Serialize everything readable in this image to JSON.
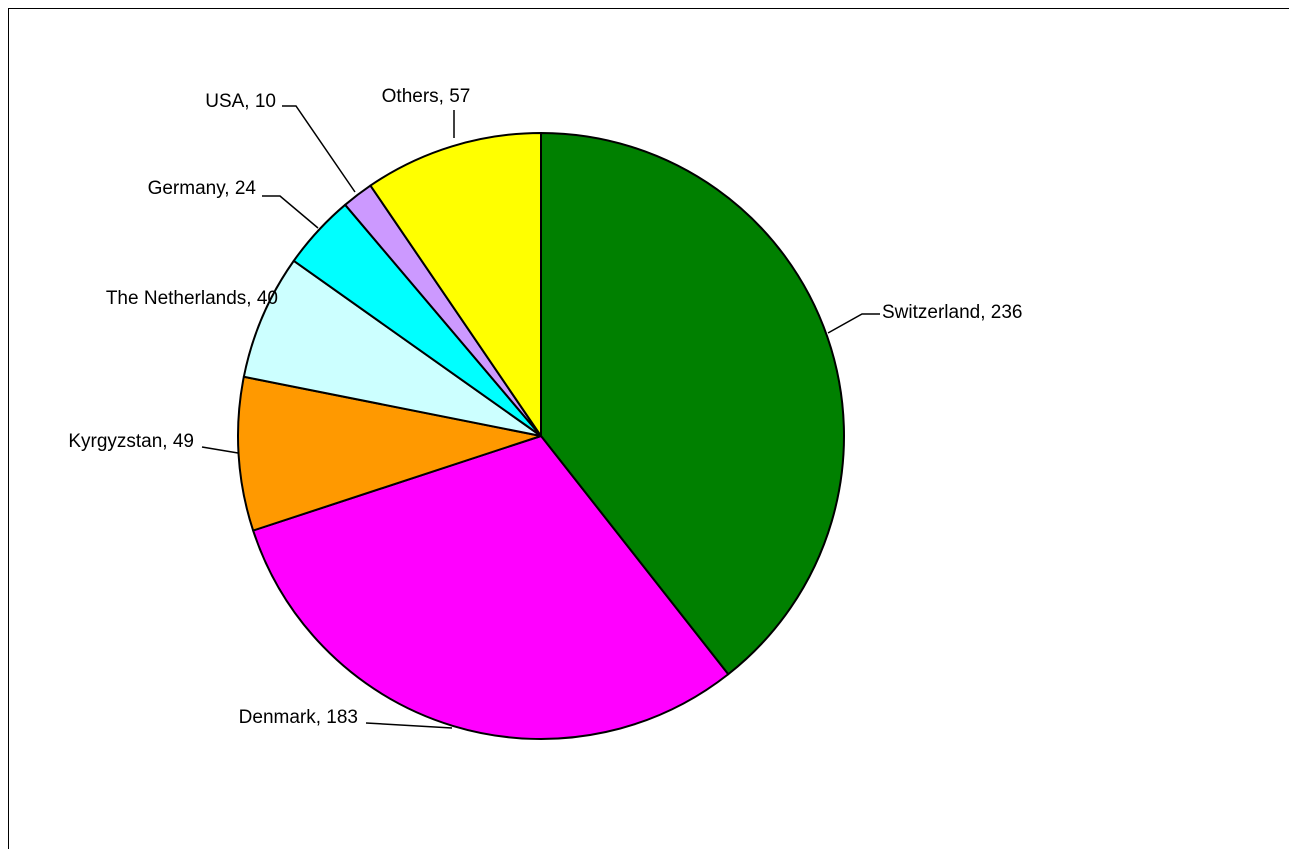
{
  "chart_data": {
    "type": "pie",
    "title": "",
    "start": "Others-to-Switzerland boundary at 12 o'clock, clockwise",
    "slices": [
      {
        "label": "Switzerland",
        "value": 236,
        "color": "#008000"
      },
      {
        "label": "Denmark",
        "value": 183,
        "color": "#ff00ff"
      },
      {
        "label": "Kyrgyzstan",
        "value": 49,
        "color": "#ff9900"
      },
      {
        "label": "The Netherlands",
        "value": 40,
        "color": "#ccffff"
      },
      {
        "label": "Germany",
        "value": 24,
        "color": "#00ffff"
      },
      {
        "label": "USA",
        "value": 10,
        "color": "#cc99ff"
      },
      {
        "label": "Others",
        "value": 57,
        "color": "#ffff00"
      }
    ],
    "label_format": "{label}, {value}",
    "slice_outline": "#000000"
  }
}
